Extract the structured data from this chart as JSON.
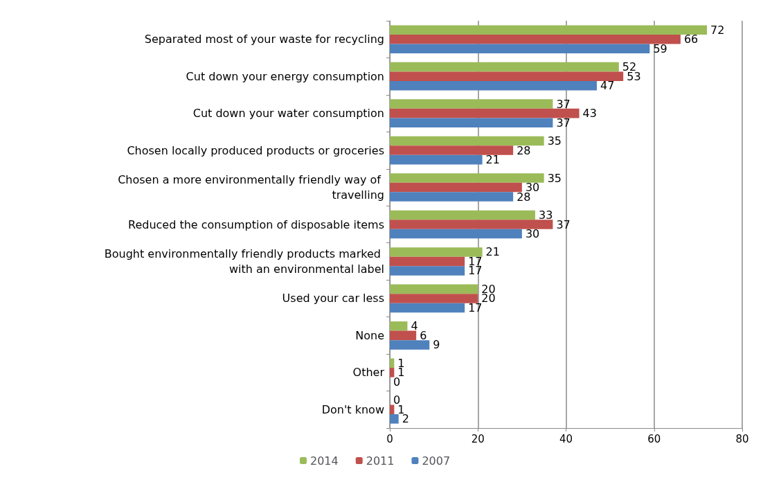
{
  "chart_data": {
    "type": "bar",
    "orientation": "horizontal",
    "categories": [
      "Separated most of your waste for recycling",
      "Cut down your energy consumption",
      "Cut down your water consumption",
      "Chosen locally produced products or groceries",
      "Chosen a more environmentally friendly way of travelling",
      "Reduced the consumption of disposable items",
      "Bought environmentally friendly products marked with an environmental label",
      "Used your car less",
      "None",
      "Other",
      "Don't know"
    ],
    "series": [
      {
        "name": "2014",
        "color": "#9bbb59",
        "values": [
          72,
          52,
          37,
          35,
          35,
          33,
          21,
          20,
          4,
          1,
          0
        ]
      },
      {
        "name": "2011",
        "color": "#c0504d",
        "values": [
          66,
          53,
          43,
          28,
          30,
          37,
          17,
          20,
          6,
          1,
          1
        ]
      },
      {
        "name": "2007",
        "color": "#4f81bd",
        "values": [
          59,
          47,
          37,
          21,
          28,
          30,
          17,
          17,
          9,
          0,
          2
        ]
      }
    ],
    "xlim": [
      0,
      80
    ],
    "xticks": [
      0,
      20,
      40,
      60,
      80
    ],
    "grid": "x",
    "legend": "bottom",
    "data_labels": true
  }
}
